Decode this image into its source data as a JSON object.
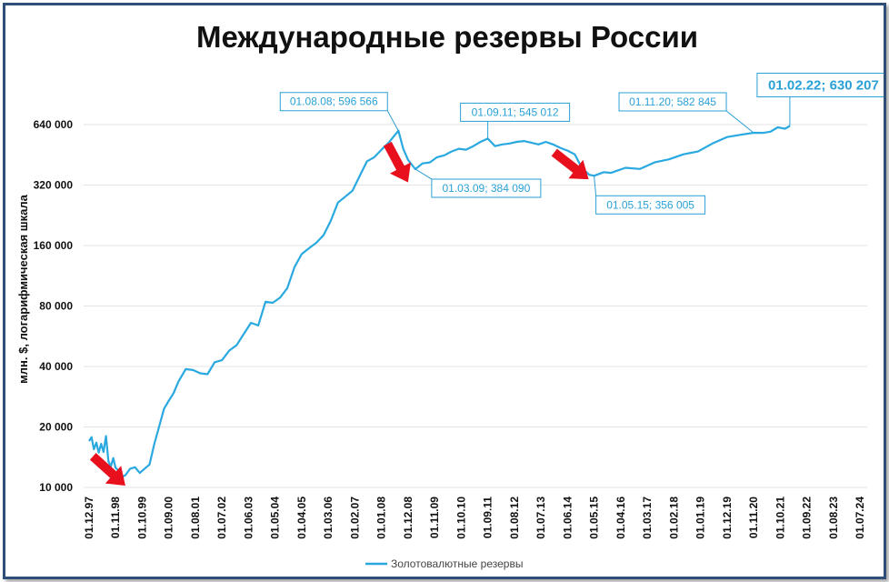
{
  "colors": {
    "series": "#2aa9e0",
    "annotation": "#2aa0d6",
    "arrow": "#e8101c",
    "frame": "#2f4f78",
    "grid": "#e3e3e3"
  },
  "chart_data": {
    "type": "line",
    "title": "Международные резервы России",
    "ylabel": "млн. $, логарифмическая шкала",
    "xlabel": "",
    "y_scale": "log",
    "ylim": [
      10000,
      800000
    ],
    "y_ticks": [
      10000,
      20000,
      40000,
      80000,
      160000,
      320000,
      640000
    ],
    "y_tick_labels": [
      "10 000",
      "20 000",
      "40 000",
      "80 000",
      "160 000",
      "320 000",
      "640 000"
    ],
    "x_tick_labels": [
      "01.12.97",
      "01.11.98",
      "01.10.99",
      "01.09.00",
      "01.08.01",
      "01.07.02",
      "01.06.03",
      "01.05.04",
      "01.04.05",
      "01.03.06",
      "01.02.07",
      "01.01.08",
      "01.12.08",
      "01.11.09",
      "01.10.10",
      "01.09.11",
      "01.08.12",
      "01.07.13",
      "01.06.14",
      "01.05.15",
      "01.04.16",
      "01.03.17",
      "01.02.18",
      "01.01.19",
      "01.12.19",
      "01.11.20",
      "01.10.21",
      "01.09.22",
      "01.08.23",
      "01.07.24"
    ],
    "grid": true,
    "legend": {
      "position": "bottom",
      "entries": [
        "Золотовалютные резервы"
      ]
    },
    "series": [
      {
        "name": "Золотовалютные резервы",
        "x": [
          "1997-12",
          "1998-01",
          "1998-02",
          "1998-03",
          "1998-04",
          "1998-05",
          "1998-06",
          "1998-07",
          "1998-08",
          "1998-09",
          "1998-10",
          "1998-11",
          "1998-12",
          "1999-01",
          "1999-03",
          "1999-05",
          "1999-07",
          "1999-09",
          "1999-11",
          "2000-01",
          "2000-03",
          "2000-05",
          "2000-07",
          "2000-09",
          "2000-11",
          "2001-01",
          "2001-04",
          "2001-07",
          "2001-10",
          "2002-01",
          "2002-04",
          "2002-07",
          "2002-10",
          "2003-01",
          "2003-04",
          "2003-07",
          "2003-10",
          "2004-01",
          "2004-04",
          "2004-07",
          "2004-10",
          "2005-01",
          "2005-04",
          "2005-07",
          "2005-10",
          "2006-01",
          "2006-04",
          "2006-07",
          "2006-10",
          "2007-01",
          "2007-04",
          "2007-07",
          "2007-10",
          "2008-01",
          "2008-04",
          "2008-08",
          "2008-10",
          "2008-12",
          "2009-03",
          "2009-06",
          "2009-09",
          "2009-12",
          "2010-03",
          "2010-06",
          "2010-09",
          "2010-12",
          "2011-03",
          "2011-06",
          "2011-09",
          "2011-12",
          "2012-03",
          "2012-06",
          "2012-09",
          "2012-12",
          "2013-03",
          "2013-06",
          "2013-09",
          "2013-12",
          "2014-03",
          "2014-06",
          "2014-09",
          "2014-12",
          "2015-03",
          "2015-05",
          "2015-09",
          "2015-12",
          "2016-06",
          "2016-12",
          "2017-06",
          "2017-12",
          "2018-06",
          "2018-12",
          "2019-06",
          "2019-12",
          "2020-06",
          "2020-11",
          "2021-03",
          "2021-06",
          "2021-09",
          "2021-12",
          "2022-02"
        ],
        "values": [
          17000,
          17800,
          15500,
          16700,
          14900,
          16500,
          15000,
          18000,
          13500,
          12700,
          14000,
          12500,
          12200,
          11200,
          11500,
          12400,
          12600,
          11800,
          12400,
          13000,
          16500,
          20100,
          24600,
          27000,
          29500,
          33700,
          38800,
          38400,
          37000,
          36600,
          42000,
          43000,
          48000,
          51000,
          58000,
          66000,
          64000,
          84000,
          83000,
          88000,
          98000,
          125000,
          145000,
          155000,
          165000,
          180000,
          212000,
          262000,
          280000,
          300000,
          355000,
          420000,
          440000,
          480000,
          520000,
          596566,
          485000,
          427000,
          384090,
          410000,
          415000,
          440000,
          450000,
          470000,
          485000,
          480000,
          500000,
          525000,
          545012,
          500000,
          510000,
          515000,
          525000,
          530000,
          520000,
          510000,
          525000,
          510000,
          490000,
          475000,
          455000,
          388000,
          360000,
          356005,
          371000,
          368000,
          390000,
          385000,
          415000,
          430000,
          455000,
          470000,
          515000,
          555000,
          570000,
          582845,
          582000,
          590000,
          620000,
          610000,
          630207
        ]
      }
    ],
    "annotations": [
      {
        "label": "01.08.08; 596 566",
        "x": "2008-08",
        "value": 596566
      },
      {
        "label": "01.03.09; 384 090",
        "x": "2009-03",
        "value": 384090
      },
      {
        "label": "01.09.11; 545 012",
        "x": "2011-09",
        "value": 545012
      },
      {
        "label": "01.05.15; 356 005",
        "x": "2015-05",
        "value": 356005
      },
      {
        "label": "01.11.20; 582 845",
        "x": "2020-11",
        "value": 582845
      },
      {
        "label": "01.02.22; 630 207",
        "x": "2022-02",
        "value": 630207
      }
    ]
  }
}
